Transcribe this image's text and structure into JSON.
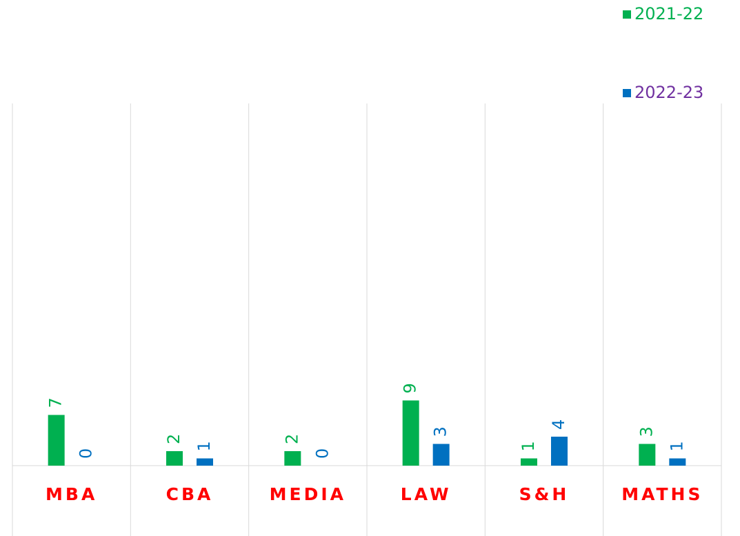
{
  "chart_data": {
    "type": "bar",
    "categories": [
      "MBA",
      "CBA",
      "MEDIA",
      "LAW",
      "S&H",
      "MATHS"
    ],
    "series": [
      {
        "name": "2021-22",
        "color": "#00b050",
        "legend_text_color": "#00b050",
        "values": [
          7,
          2,
          2,
          9,
          1,
          3
        ]
      },
      {
        "name": "2022-23",
        "color": "#0070c0",
        "legend_text_color": "#7030a0",
        "values": [
          0,
          1,
          0,
          3,
          4,
          1
        ]
      }
    ],
    "category_label_color": "#ff0000",
    "ylim": [
      0,
      50
    ],
    "legend": "top-right",
    "grid": "vertical"
  }
}
